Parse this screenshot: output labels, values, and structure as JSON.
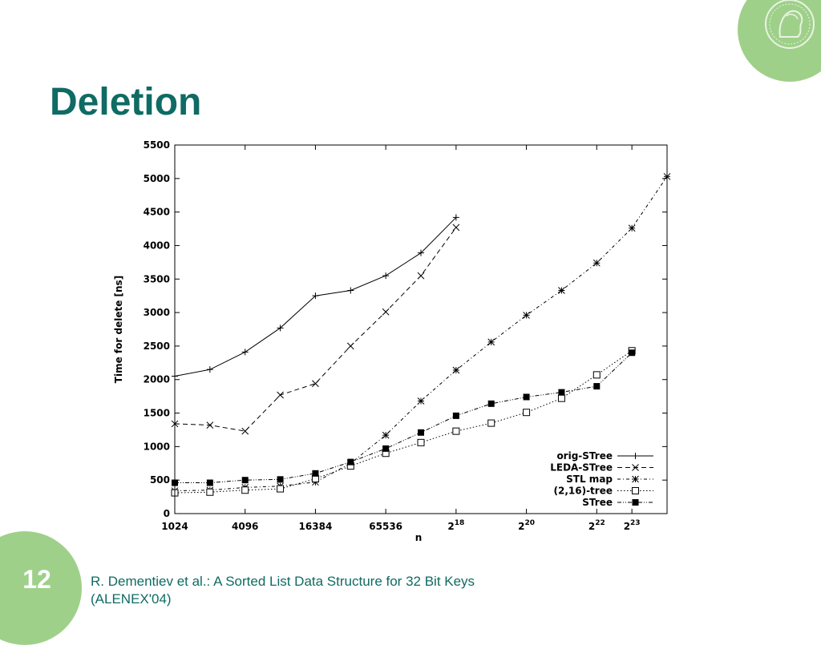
{
  "slide": {
    "title": "Deletion",
    "page_number": "12",
    "footer_line1": "R. Dementiev et al.: A Sorted List Data Structure for 32 Bit Keys",
    "footer_line2": "(ALENEX'04)"
  },
  "colors": {
    "title": "#0f6b63",
    "accent_green": "#9fd08a",
    "footer_text": "#0f6b63",
    "chart_ink": "#000000"
  },
  "logo": {
    "icon": "seal-portrait-icon"
  },
  "chart_data": {
    "type": "line",
    "title": "",
    "xlabel": "n",
    "ylabel": "Time for delete [ns]",
    "x_scale": "log2",
    "xlim": [
      1024,
      16777216
    ],
    "ylim": [
      0,
      5500
    ],
    "y_ticks": [
      0,
      500,
      1000,
      1500,
      2000,
      2500,
      3000,
      3500,
      4000,
      4500,
      5000,
      5500
    ],
    "x_ticks": [
      {
        "x": 1024,
        "label": "1024"
      },
      {
        "x": 4096,
        "label": "4096"
      },
      {
        "x": 16384,
        "label": "16384"
      },
      {
        "x": 65536,
        "label": "65536"
      },
      {
        "x": 262144,
        "base": "2",
        "exp": "18"
      },
      {
        "x": 1048576,
        "base": "2",
        "exp": "20"
      },
      {
        "x": 4194304,
        "base": "2",
        "exp": "22"
      },
      {
        "x": 8388608,
        "base": "2",
        "exp": "23"
      }
    ],
    "legend_position": "bottom-right",
    "grid": false,
    "series": [
      {
        "name": "orig-STree",
        "marker": "plus",
        "dash": "solid",
        "x": [
          1024,
          2048,
          4096,
          8192,
          16384,
          32768,
          65536,
          131072,
          262144
        ],
        "y": [
          2050,
          2150,
          2410,
          2770,
          3250,
          3330,
          3550,
          3890,
          4420
        ]
      },
      {
        "name": "LEDA-STree",
        "marker": "cross",
        "dash": "dashed",
        "x": [
          1024,
          2048,
          4096,
          8192,
          16384,
          32768,
          65536,
          131072,
          262144
        ],
        "y": [
          1340,
          1320,
          1230,
          1770,
          1940,
          2500,
          3010,
          3550,
          4270
        ]
      },
      {
        "name": "STL map",
        "marker": "star",
        "dash": "dashdot",
        "x": [
          1024,
          2048,
          4096,
          8192,
          16384,
          32768,
          65536,
          131072,
          262144,
          524288,
          1048576,
          2097152,
          4194304,
          8388608,
          16777216
        ],
        "y": [
          340,
          350,
          390,
          410,
          470,
          750,
          1170,
          1680,
          2140,
          2560,
          2960,
          3330,
          3740,
          4260,
          5030
        ]
      },
      {
        "name": "(2,16)-tree",
        "marker": "open-square",
        "dash": "dotted",
        "x": [
          1024,
          2048,
          4096,
          8192,
          16384,
          32768,
          65536,
          131072,
          262144,
          524288,
          1048576,
          2097152,
          4194304,
          8388608
        ],
        "y": [
          310,
          320,
          350,
          370,
          520,
          710,
          900,
          1060,
          1230,
          1350,
          1510,
          1720,
          2070,
          2430
        ]
      },
      {
        "name": "STree",
        "marker": "filled-square",
        "dash": "dashdotdot",
        "x": [
          1024,
          2048,
          4096,
          8192,
          16384,
          32768,
          65536,
          131072,
          262144,
          524288,
          1048576,
          2097152,
          4194304,
          8388608
        ],
        "y": [
          460,
          460,
          500,
          510,
          600,
          770,
          970,
          1210,
          1460,
          1640,
          1740,
          1810,
          1900,
          2400
        ]
      }
    ]
  }
}
